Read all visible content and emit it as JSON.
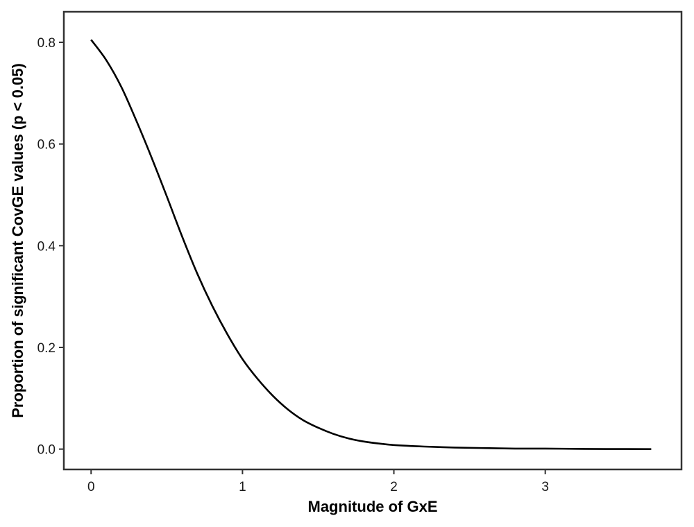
{
  "chart_data": {
    "type": "line",
    "title": "",
    "xlabel": "Magnitude of GxE",
    "ylabel": "Proportion of significant CovGE values (p < 0.05)",
    "xlim": [
      -0.18,
      3.9
    ],
    "ylim": [
      -0.04,
      0.86
    ],
    "x_ticks": [
      0,
      1,
      2,
      3
    ],
    "x_tick_labels": [
      "0",
      "1",
      "2",
      "3"
    ],
    "y_ticks": [
      0.0,
      0.2,
      0.4,
      0.6,
      0.8
    ],
    "y_tick_labels": [
      "0.0",
      "0.2",
      "0.4",
      "0.6",
      "0.8"
    ],
    "grid": false,
    "legend": "none",
    "series": [
      {
        "color": "#000000",
        "x": [
          0.0,
          0.1,
          0.2,
          0.3,
          0.4,
          0.5,
          0.6,
          0.7,
          0.8,
          0.9,
          1.0,
          1.1,
          1.2,
          1.3,
          1.4,
          1.5,
          1.6,
          1.7,
          1.8,
          1.9,
          2.0,
          2.2,
          2.4,
          2.6,
          2.8,
          3.0,
          3.2,
          3.4,
          3.7
        ],
        "y": [
          0.805,
          0.765,
          0.712,
          0.645,
          0.573,
          0.497,
          0.419,
          0.346,
          0.282,
          0.226,
          0.177,
          0.138,
          0.105,
          0.078,
          0.057,
          0.042,
          0.03,
          0.021,
          0.015,
          0.011,
          0.008,
          0.005,
          0.003,
          0.002,
          0.001,
          0.001,
          0.0005,
          0.0002,
          0.0
        ]
      }
    ]
  }
}
